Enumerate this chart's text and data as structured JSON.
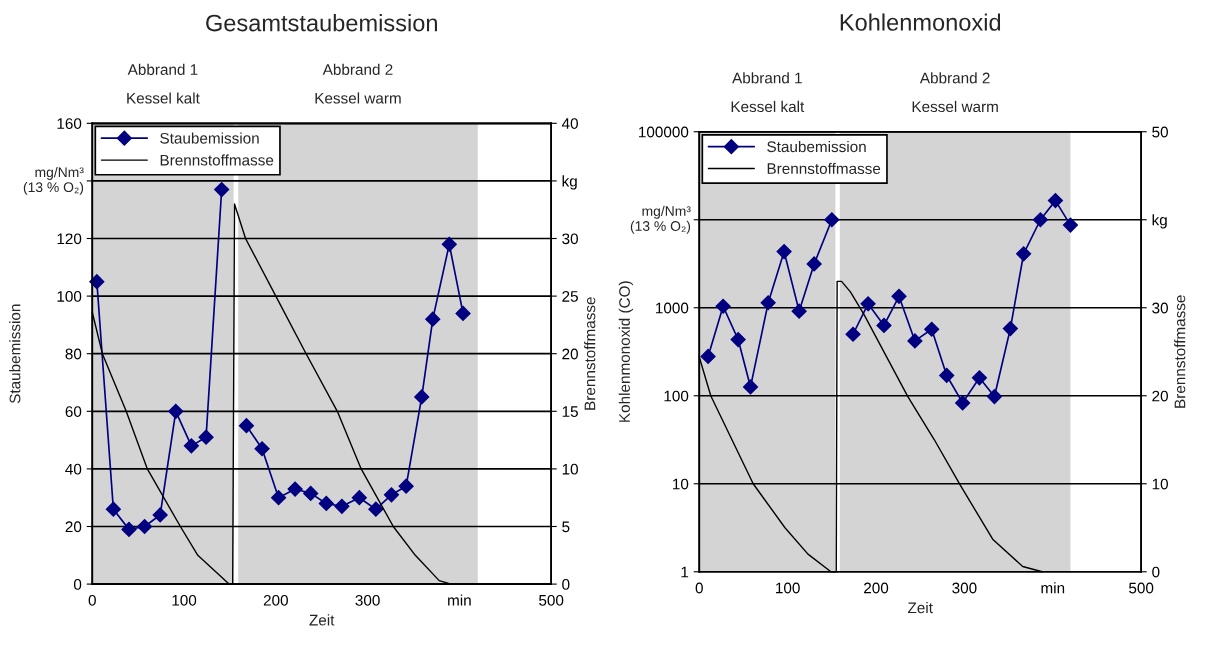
{
  "chart_data": [
    {
      "type": "line",
      "title": "Gesamtstaubemission",
      "xlabel": "Zeit",
      "ylabel": "Staubemission",
      "y2label": "Brennstoffmasse",
      "xlim": [
        0,
        500
      ],
      "xticks": [
        0,
        100,
        200,
        300,
        {
          "value": 400,
          "label": "min"
        },
        500
      ],
      "ylim": [
        0,
        160
      ],
      "yticks": [
        0,
        20,
        40,
        60,
        80,
        100,
        120,
        {
          "value": 140,
          "label": null
        },
        160
      ],
      "annotations": [
        "mg/Nm³\n(13 % O₂)"
      ],
      "y2lim": [
        0,
        40
      ],
      "y2ticks": [
        0,
        5,
        10,
        15,
        20,
        25,
        30,
        {
          "value": 35,
          "label": "kg"
        },
        40
      ],
      "grid": "y",
      "legend": "top left",
      "bands": [
        {
          "axis": "x",
          "from": 0,
          "to": 154,
          "label": "Abbrand 1\nKessel kalt",
          "color": "#d4d4d4"
        },
        {
          "axis": "x",
          "from": 159,
          "to": 420,
          "label": "Abbrand 2\nKessel warm",
          "color": "#d4d4d4"
        }
      ],
      "series": [
        {
          "name": "Staubemission",
          "color": "#000080",
          "marker": "diamond",
          "x": [
            5,
            23,
            40,
            57,
            74,
            91,
            108,
            124,
            141,
            null,
            168,
            185,
            203,
            221,
            238,
            255,
            272,
            291,
            309,
            326,
            342,
            359,
            371,
            389,
            404
          ],
          "values": [
            105,
            26,
            19,
            20,
            24,
            60,
            48,
            51,
            137,
            null,
            55,
            47,
            30,
            33,
            31.5,
            28,
            27,
            30,
            26,
            31,
            34,
            65,
            92,
            118,
            94
          ]
        },
        {
          "name": "Brennstoffmasse",
          "color": "#000000",
          "marker": "none",
          "axis": "y2",
          "x": [
            0,
            11,
            37,
            60,
            96,
            115,
            149,
            153,
            155,
            167,
            200,
            233,
            267,
            293,
            328,
            352,
            378,
            391
          ],
          "values": [
            23.6,
            20,
            15,
            10,
            5,
            2.5,
            0,
            0,
            33,
            30,
            25,
            20,
            15,
            10,
            5,
            2.5,
            0.3,
            0
          ]
        }
      ]
    },
    {
      "type": "line",
      "title": "Kohlenmonoxid",
      "xlabel": "Zeit",
      "ylabel": "Kohlenmonoxid (CO)",
      "y2label": "Brennstoffmasse",
      "xlim": [
        0,
        500
      ],
      "xticks": [
        0,
        100,
        200,
        300,
        {
          "value": 400,
          "label": "min"
        },
        500
      ],
      "log": "y",
      "ylim": [
        1,
        100000
      ],
      "yticks": [
        1,
        10,
        100,
        1000,
        {
          "value": 10000,
          "label": null
        },
        100000
      ],
      "annotations": [
        "mg/Nm³\n(13 % O₂)"
      ],
      "y2lim": [
        0,
        50
      ],
      "y2ticks": [
        0,
        10,
        20,
        30,
        {
          "value": 40,
          "label": "kg"
        },
        50
      ],
      "grid": "y",
      "legend": "top left",
      "bands": [
        {
          "axis": "x",
          "from": 0,
          "to": 154,
          "label": "Abbrand 1\nKessel kalt",
          "color": "#d4d4d4"
        },
        {
          "axis": "x",
          "from": 159,
          "to": 420,
          "label": "Abbrand 2\nKessel warm",
          "color": "#d4d4d4"
        }
      ],
      "series": [
        {
          "name": "Staubemission",
          "color": "#000080",
          "marker": "diamond",
          "x": [
            10,
            27,
            44,
            58,
            78,
            96,
            113,
            130,
            150,
            null,
            174,
            191,
            209,
            226,
            244,
            263,
            280,
            298,
            317,
            334,
            352,
            367,
            386,
            403,
            420
          ],
          "values": [
            280,
            1040,
            435,
            126,
            1140,
            4350,
            915,
            3150,
            10000,
            null,
            500,
            1110,
            630,
            1350,
            420,
            570,
            170,
            83,
            160,
            98,
            580,
            4100,
            10000,
            16500,
            8700
          ]
        },
        {
          "name": "Brennstoffmasse",
          "color": "#000000",
          "marker": "none",
          "axis": "y2",
          "x": [
            0,
            13,
            61,
            97,
            123,
            149,
            155,
            156,
            161,
            171,
            186,
            236,
            266,
            295,
            332,
            366,
            388
          ],
          "values": [
            24.4,
            20,
            10,
            5,
            2,
            0,
            0,
            33,
            33,
            31.8,
            29.3,
            19.9,
            15,
            9.9,
            3.7,
            0.6,
            0
          ]
        }
      ]
    }
  ]
}
